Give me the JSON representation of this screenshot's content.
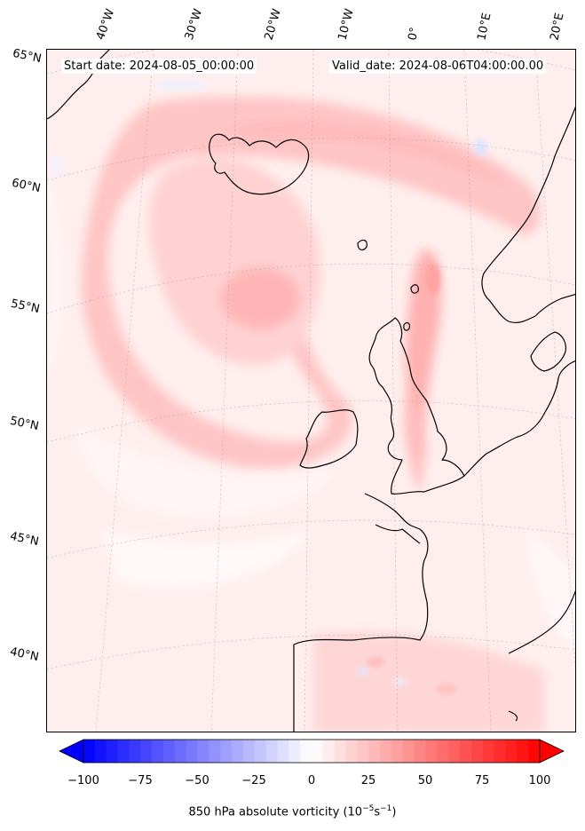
{
  "header": {
    "start_date": "Start date: 2024-08-05_00:00:00",
    "valid_date": "Valid_date: 2024-08-06T04:00:00.00"
  },
  "longitude_labels": [
    "40°W",
    "30°W",
    "20°W",
    "10°W",
    "0°",
    "10°E",
    "20°E"
  ],
  "latitude_labels": [
    "65°N",
    "60°N",
    "55°N",
    "50°N",
    "45°N",
    "40°N"
  ],
  "colorbar": {
    "title": "850 hPa absolute vorticity (10",
    "title_exp1": "−5",
    "title_mid": "s",
    "title_exp2": "−1",
    "title_end": ")",
    "ticks": [
      "−100",
      "−75",
      "−50",
      "−25",
      "0",
      "25",
      "50",
      "75",
      "100"
    ],
    "min": -100,
    "max": 100,
    "cmap_low": "#0000ff",
    "cmap_mid": "#ffffff",
    "cmap_high": "#ff0000",
    "extend": "both"
  }
}
